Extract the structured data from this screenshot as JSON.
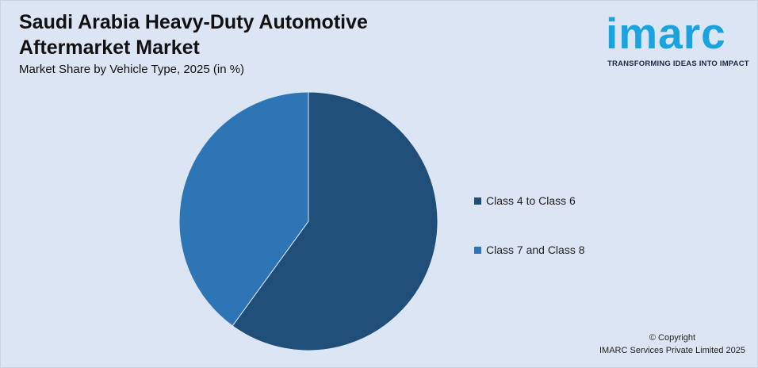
{
  "header": {
    "title": "Saudi Arabia Heavy-Duty Automotive Aftermarket Market",
    "subtitle": "Market Share by Vehicle Type, 2025 (in %)"
  },
  "logo": {
    "wordmark": "imarc",
    "tagline": "TRANSFORMING IDEAS INTO IMPACT",
    "color": "#1ba3e0"
  },
  "chart_data": {
    "type": "pie",
    "title": "Saudi Arabia Heavy-Duty Automotive Aftermarket Market",
    "subtitle": "Market Share by Vehicle Type, 2025 (in %)",
    "categories": [
      "Class 4 to Class 6",
      "Class 7 and Class 8"
    ],
    "values": [
      60,
      40
    ],
    "colors": [
      "#1f4e79",
      "#2e75b6"
    ],
    "legend": "right",
    "start_angle": "12 o'clock, clockwise"
  },
  "footer": {
    "copyright_line1": "© Copyright",
    "copyright_line2": "IMARC Services Private Limited 2025"
  }
}
